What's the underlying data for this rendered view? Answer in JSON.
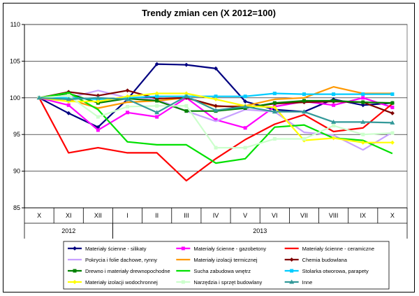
{
  "chart_data": {
    "type": "line",
    "title": "Trendy zmian cen (X 2012=100)",
    "xlabel": "",
    "ylabel": "",
    "ylim": [
      85,
      110
    ],
    "yticks": [
      85,
      90,
      95,
      100,
      105,
      110
    ],
    "grid": true,
    "categories": [
      "X",
      "XI",
      "XII",
      "I",
      "II",
      "III",
      "IV",
      "V",
      "VI",
      "VII",
      "VIII",
      "IX",
      "X"
    ],
    "year_groups": [
      {
        "label": "2012",
        "start": 0,
        "end": 2
      },
      {
        "label": "2013",
        "start": 3,
        "end": 12
      }
    ],
    "legend_position": "bottom",
    "series": [
      {
        "name": "Materiały ścienne - silikaty",
        "color": "#000080",
        "marker": "diamond",
        "values": [
          100,
          97.9,
          96.0,
          99.8,
          104.6,
          104.5,
          104.0,
          99.5,
          98.4,
          98.1,
          99.8,
          99.0,
          99.3
        ]
      },
      {
        "name": "Materiały ścienne - gazobetony",
        "color": "#ff00ff",
        "marker": "square",
        "values": [
          100,
          99.0,
          95.6,
          98.0,
          97.4,
          100.0,
          97.0,
          95.9,
          98.8,
          99.5,
          99.0,
          100.0,
          98.7
        ]
      },
      {
        "name": "Materiały ścienne - ceramiczne",
        "color": "#ff0000",
        "marker": "none",
        "values": [
          100,
          92.5,
          93.2,
          92.5,
          92.5,
          88.7,
          91.7,
          94.3,
          96.4,
          97.7,
          95.4,
          95.9,
          99.2
        ]
      },
      {
        "name": "Pokrycia i folie dachowe, rynny",
        "color": "#c8a0ff",
        "marker": "none",
        "values": [
          100,
          100.0,
          101.0,
          100.0,
          99.8,
          98.2,
          96.8,
          98.4,
          98.1,
          95.3,
          94.9,
          92.9,
          95.3
        ]
      },
      {
        "name": "Materiały izolacji termicznej",
        "color": "#ff9900",
        "marker": "none",
        "values": [
          100,
          99.8,
          98.6,
          99.4,
          99.6,
          100.0,
          98.8,
          98.9,
          99.8,
          100.0,
          101.5,
          100.6,
          100.6
        ]
      },
      {
        "name": "Chemia budowlana",
        "color": "#800000",
        "marker": "diamond",
        "values": [
          100,
          100.8,
          100.3,
          101.0,
          99.9,
          100.0,
          98.9,
          98.7,
          99.2,
          99.4,
          99.5,
          99.4,
          97.9
        ]
      },
      {
        "name": "Drewno i materiały drewnopochodne",
        "color": "#008000",
        "marker": "square",
        "values": [
          100,
          100.6,
          99.3,
          99.9,
          99.6,
          98.2,
          98.2,
          98.6,
          99.3,
          99.6,
          99.6,
          99.4,
          99.3
        ]
      },
      {
        "name": "Sucha zabudowa wnętrz",
        "color": "#00e000",
        "marker": "none",
        "values": [
          100,
          100.7,
          98.4,
          94.0,
          93.6,
          93.6,
          91.1,
          91.7,
          96.0,
          96.3,
          94.5,
          94.2,
          92.4
        ]
      },
      {
        "name": "Stolarka otworowa, parapety",
        "color": "#00ccff",
        "marker": "square",
        "values": [
          100,
          100.0,
          99.8,
          100.0,
          100.2,
          100.2,
          100.2,
          100.2,
          100.6,
          100.5,
          100.5,
          100.5,
          100.5
        ]
      },
      {
        "name": "Materiały izolacji wodochronnej",
        "color": "#ffff00",
        "marker": "diamond",
        "values": [
          100,
          99.5,
          99.5,
          100.2,
          100.6,
          100.6,
          99.8,
          98.9,
          98.7,
          94.2,
          94.5,
          93.9,
          93.9
        ]
      },
      {
        "name": "Narzędzia i sprzęt budowlany",
        "color": "#ccffcc",
        "marker": "square",
        "values": [
          100,
          100.3,
          97.4,
          98.8,
          98.9,
          98.9,
          93.2,
          93.2,
          94.4,
          94.4,
          96.2,
          95.0,
          95.2
        ]
      },
      {
        "name": "Inne",
        "color": "#339999",
        "marker": "triangle",
        "values": [
          100,
          99.8,
          100.0,
          99.8,
          98.0,
          100.2,
          98.3,
          98.8,
          98.1,
          98.1,
          96.7,
          96.7,
          96.6
        ]
      }
    ]
  }
}
